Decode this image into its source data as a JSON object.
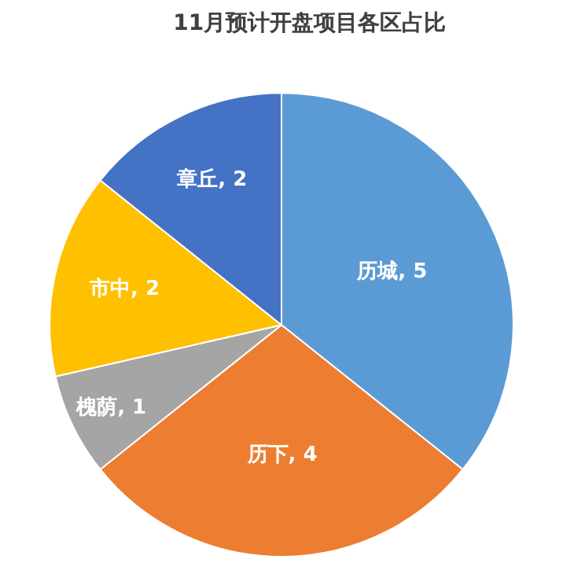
{
  "chart_data": {
    "type": "pie",
    "title": "11月预计开盘项目各区占比",
    "categories": [
      "历城",
      "历下",
      "槐荫",
      "市中",
      "章丘"
    ],
    "values": [
      5,
      4,
      1,
      2,
      2
    ],
    "colors": [
      "#5b9bd5",
      "#ed7d31",
      "#a5a5a5",
      "#ffc000",
      "#4472c4"
    ],
    "value_labels": [
      ", 5",
      ", 4",
      ", 1",
      ", 2",
      ", 2"
    ],
    "legend": false
  }
}
